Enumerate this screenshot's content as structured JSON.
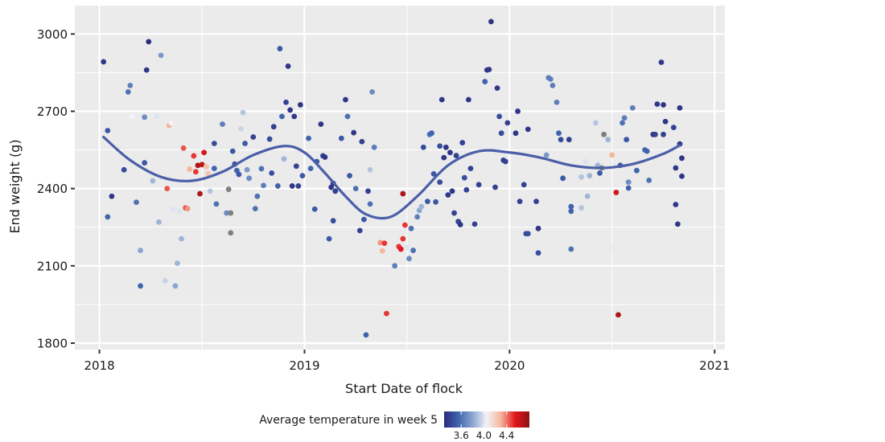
{
  "chart_data": {
    "type": "scatter",
    "title": "",
    "xlabel": "Start Date of flock",
    "ylabel": "End weight (g)",
    "xlim": [
      2017.88,
      2021.05
    ],
    "ylim": [
      1775,
      3110
    ],
    "x_ticks": [
      2018,
      2019,
      2020,
      2021
    ],
    "x_tick_labels": [
      "2018",
      "2019",
      "2020",
      "2021"
    ],
    "y_ticks": [
      1800,
      2100,
      2400,
      2700,
      3000
    ],
    "y_tick_labels": [
      "1800",
      "2100",
      "2400",
      "2700",
      "3000"
    ],
    "grid": true,
    "legend": {
      "title": "Average temperature in week 5",
      "placement": "bottom",
      "type": "colorbar",
      "range": [
        3.3,
        4.8
      ],
      "ticks": [
        3.6,
        4.0,
        4.4
      ],
      "tick_labels": [
        "3.6",
        "4.0",
        "4.4"
      ],
      "colors": [
        "#2c2a7e",
        "#3f64ad",
        "#8aa6cf",
        "#f2f2f7",
        "#f4b69b",
        "#e3161a",
        "#8c1416"
      ],
      "missing_color": "#7f7f7f"
    },
    "smooth_line": {
      "color": "#4a5fa8",
      "x": [
        2018.02,
        2018.15,
        2018.3,
        2018.45,
        2018.6,
        2018.75,
        2018.9,
        2019.0,
        2019.1,
        2019.2,
        2019.3,
        2019.42,
        2019.55,
        2019.7,
        2019.85,
        2020.0,
        2020.15,
        2020.3,
        2020.45,
        2020.6,
        2020.75,
        2020.83
      ],
      "y": [
        2600,
        2510,
        2445,
        2430,
        2465,
        2530,
        2565,
        2540,
        2460,
        2370,
        2300,
        2290,
        2370,
        2490,
        2545,
        2540,
        2520,
        2490,
        2480,
        2495,
        2535,
        2568
      ]
    },
    "points": [
      {
        "x": 2018.02,
        "y": 2892,
        "t": 3.35
      },
      {
        "x": 2018.04,
        "y": 2625,
        "t": 3.5
      },
      {
        "x": 2018.04,
        "y": 2290,
        "t": 3.55
      },
      {
        "x": 2018.06,
        "y": 2370,
        "t": 3.35
      },
      {
        "x": 2018.12,
        "y": 2473,
        "t": 3.45
      },
      {
        "x": 2018.14,
        "y": 2775,
        "t": 3.6
      },
      {
        "x": 2018.15,
        "y": 2800,
        "t": 3.65
      },
      {
        "x": 2018.16,
        "y": 2680,
        "t": 4.05
      },
      {
        "x": 2018.18,
        "y": 2347,
        "t": 3.6
      },
      {
        "x": 2018.2,
        "y": 2160,
        "t": 3.8
      },
      {
        "x": 2018.2,
        "y": 2022,
        "t": 3.55
      },
      {
        "x": 2018.22,
        "y": 2677,
        "t": 3.7
      },
      {
        "x": 2018.22,
        "y": 2500,
        "t": 3.5
      },
      {
        "x": 2018.23,
        "y": 2860,
        "t": 3.35
      },
      {
        "x": 2018.24,
        "y": 2970,
        "t": 3.3
      },
      {
        "x": 2018.26,
        "y": 2430,
        "t": 3.85
      },
      {
        "x": 2018.28,
        "y": 2680,
        "t": 4.0
      },
      {
        "x": 2018.29,
        "y": 2270,
        "t": 3.85
      },
      {
        "x": 2018.3,
        "y": 2917,
        "t": 3.75
      },
      {
        "x": 2018.32,
        "y": 2042,
        "t": 3.95
      },
      {
        "x": 2018.33,
        "y": 2400,
        "t": 4.45
      },
      {
        "x": 2018.34,
        "y": 2645,
        "t": 4.3
      },
      {
        "x": 2018.35,
        "y": 2655,
        "t": 4.05
      },
      {
        "x": 2018.36,
        "y": 2320,
        "t": 4.0
      },
      {
        "x": 2018.37,
        "y": 2022,
        "t": 3.8
      },
      {
        "x": 2018.38,
        "y": 2110,
        "t": 3.85
      },
      {
        "x": 2018.39,
        "y": 2310,
        "t": 4.0
      },
      {
        "x": 2018.4,
        "y": 2205,
        "t": 3.85
      },
      {
        "x": 2018.41,
        "y": 2557,
        "t": 4.45
      },
      {
        "x": 2018.42,
        "y": 2325,
        "t": 4.45
      },
      {
        "x": 2018.43,
        "y": 2322,
        "t": 4.35
      },
      {
        "x": 2018.44,
        "y": 2475,
        "t": 4.3
      },
      {
        "x": 2018.46,
        "y": 2527,
        "t": 4.5
      },
      {
        "x": 2018.47,
        "y": 2465,
        "t": 4.5
      },
      {
        "x": 2018.48,
        "y": 2490,
        "t": 4.7
      },
      {
        "x": 2018.49,
        "y": 2380,
        "t": 4.7
      },
      {
        "x": 2018.5,
        "y": 2493,
        "t": 4.65
      },
      {
        "x": 2018.51,
        "y": 2540,
        "t": 4.6
      },
      {
        "x": 2018.52,
        "y": 2485,
        "t": 4.25
      },
      {
        "x": 2018.53,
        "y": 2458,
        "t": 4.25
      },
      {
        "x": 2018.54,
        "y": 2390,
        "t": 3.9
      },
      {
        "x": 2018.56,
        "y": 2575,
        "t": 3.45
      },
      {
        "x": 2018.56,
        "y": 2478,
        "t": 3.55
      },
      {
        "x": 2018.57,
        "y": 2340,
        "t": 3.6
      },
      {
        "x": 2018.6,
        "y": 2650,
        "t": 3.65
      },
      {
        "x": 2018.62,
        "y": 2305,
        "t": 3.7
      },
      {
        "x": 2018.63,
        "y": 2397,
        "t": 3.3,
        "missing": true
      },
      {
        "x": 2018.64,
        "y": 2305,
        "t": 3.3,
        "missing": true
      },
      {
        "x": 2018.64,
        "y": 2228,
        "t": 3.3,
        "missing": true
      },
      {
        "x": 2018.65,
        "y": 2545,
        "t": 3.5
      },
      {
        "x": 2018.66,
        "y": 2495,
        "t": 3.45
      },
      {
        "x": 2018.67,
        "y": 2470,
        "t": 3.55
      },
      {
        "x": 2018.68,
        "y": 2455,
        "t": 3.5
      },
      {
        "x": 2018.69,
        "y": 2632,
        "t": 3.95
      },
      {
        "x": 2018.7,
        "y": 2695,
        "t": 3.9
      },
      {
        "x": 2018.71,
        "y": 2575,
        "t": 3.5
      },
      {
        "x": 2018.72,
        "y": 2473,
        "t": 3.75
      },
      {
        "x": 2018.73,
        "y": 2440,
        "t": 3.7
      },
      {
        "x": 2018.75,
        "y": 2600,
        "t": 3.4
      },
      {
        "x": 2018.76,
        "y": 2322,
        "t": 3.6
      },
      {
        "x": 2018.77,
        "y": 2370,
        "t": 3.6
      },
      {
        "x": 2018.79,
        "y": 2477,
        "t": 3.6
      },
      {
        "x": 2018.8,
        "y": 2412,
        "t": 3.65
      },
      {
        "x": 2018.83,
        "y": 2592,
        "t": 3.45
      },
      {
        "x": 2018.84,
        "y": 2460,
        "t": 3.45
      },
      {
        "x": 2018.85,
        "y": 2640,
        "t": 3.4
      },
      {
        "x": 2018.87,
        "y": 2410,
        "t": 3.55
      },
      {
        "x": 2018.88,
        "y": 2943,
        "t": 3.5
      },
      {
        "x": 2018.89,
        "y": 2680,
        "t": 3.55
      },
      {
        "x": 2018.9,
        "y": 2515,
        "t": 3.85
      },
      {
        "x": 2018.91,
        "y": 2735,
        "t": 3.4
      },
      {
        "x": 2018.92,
        "y": 2875,
        "t": 3.35
      },
      {
        "x": 2018.93,
        "y": 2705,
        "t": 3.35
      },
      {
        "x": 2018.94,
        "y": 2410,
        "t": 3.35
      },
      {
        "x": 2018.95,
        "y": 2680,
        "t": 3.35
      },
      {
        "x": 2018.96,
        "y": 2487,
        "t": 3.4
      },
      {
        "x": 2018.97,
        "y": 2410,
        "t": 3.4
      },
      {
        "x": 2018.98,
        "y": 2725,
        "t": 3.35
      },
      {
        "x": 2018.99,
        "y": 2450,
        "t": 3.5
      },
      {
        "x": 2019.02,
        "y": 2595,
        "t": 3.55
      },
      {
        "x": 2019.03,
        "y": 2478,
        "t": 3.55
      },
      {
        "x": 2019.05,
        "y": 2320,
        "t": 3.5
      },
      {
        "x": 2019.06,
        "y": 2505,
        "t": 3.5
      },
      {
        "x": 2019.08,
        "y": 2650,
        "t": 3.35
      },
      {
        "x": 2019.09,
        "y": 2527,
        "t": 3.4
      },
      {
        "x": 2019.1,
        "y": 2522,
        "t": 3.35
      },
      {
        "x": 2019.12,
        "y": 2205,
        "t": 3.5
      },
      {
        "x": 2019.13,
        "y": 2405,
        "t": 3.35
      },
      {
        "x": 2019.14,
        "y": 2420,
        "t": 3.35
      },
      {
        "x": 2019.14,
        "y": 2275,
        "t": 3.45
      },
      {
        "x": 2019.15,
        "y": 2390,
        "t": 3.4
      },
      {
        "x": 2019.18,
        "y": 2595,
        "t": 3.5
      },
      {
        "x": 2019.2,
        "y": 2745,
        "t": 3.35
      },
      {
        "x": 2019.21,
        "y": 2680,
        "t": 3.6
      },
      {
        "x": 2019.22,
        "y": 2450,
        "t": 3.5
      },
      {
        "x": 2019.24,
        "y": 2617,
        "t": 3.35
      },
      {
        "x": 2019.25,
        "y": 2400,
        "t": 3.6
      },
      {
        "x": 2019.27,
        "y": 2237,
        "t": 3.4
      },
      {
        "x": 2019.28,
        "y": 2582,
        "t": 3.4
      },
      {
        "x": 2019.29,
        "y": 2280,
        "t": 3.5
      },
      {
        "x": 2019.3,
        "y": 1832,
        "t": 3.55
      },
      {
        "x": 2019.31,
        "y": 2390,
        "t": 3.4
      },
      {
        "x": 2019.32,
        "y": 2340,
        "t": 3.6
      },
      {
        "x": 2019.32,
        "y": 2473,
        "t": 3.9
      },
      {
        "x": 2019.33,
        "y": 2775,
        "t": 3.7
      },
      {
        "x": 2019.34,
        "y": 2560,
        "t": 3.65
      },
      {
        "x": 2019.37,
        "y": 2190,
        "t": 4.35
      },
      {
        "x": 2019.38,
        "y": 2158,
        "t": 4.3
      },
      {
        "x": 2019.39,
        "y": 2188,
        "t": 4.5
      },
      {
        "x": 2019.4,
        "y": 1915,
        "t": 4.5
      },
      {
        "x": 2019.44,
        "y": 2100,
        "t": 3.65
      },
      {
        "x": 2019.46,
        "y": 2175,
        "t": 4.5
      },
      {
        "x": 2019.47,
        "y": 2165,
        "t": 4.55
      },
      {
        "x": 2019.48,
        "y": 2205,
        "t": 4.5
      },
      {
        "x": 2019.48,
        "y": 2380,
        "t": 4.7
      },
      {
        "x": 2019.49,
        "y": 2258,
        "t": 4.5
      },
      {
        "x": 2019.5,
        "y": 2172,
        "t": 4.0
      },
      {
        "x": 2019.51,
        "y": 2128,
        "t": 3.7
      },
      {
        "x": 2019.52,
        "y": 2245,
        "t": 3.6
      },
      {
        "x": 2019.53,
        "y": 2160,
        "t": 3.6
      },
      {
        "x": 2019.55,
        "y": 2290,
        "t": 3.65
      },
      {
        "x": 2019.56,
        "y": 2315,
        "t": 3.8
      },
      {
        "x": 2019.57,
        "y": 2330,
        "t": 3.85
      },
      {
        "x": 2019.58,
        "y": 2560,
        "t": 3.45
      },
      {
        "x": 2019.6,
        "y": 2350,
        "t": 3.5
      },
      {
        "x": 2019.61,
        "y": 2610,
        "t": 3.6
      },
      {
        "x": 2019.62,
        "y": 2615,
        "t": 3.55
      },
      {
        "x": 2019.63,
        "y": 2457,
        "t": 3.5
      },
      {
        "x": 2019.64,
        "y": 2348,
        "t": 3.5
      },
      {
        "x": 2019.66,
        "y": 2565,
        "t": 3.45
      },
      {
        "x": 2019.66,
        "y": 2425,
        "t": 3.45
      },
      {
        "x": 2019.67,
        "y": 2745,
        "t": 3.35
      },
      {
        "x": 2019.68,
        "y": 2520,
        "t": 3.35
      },
      {
        "x": 2019.69,
        "y": 2560,
        "t": 3.35
      },
      {
        "x": 2019.7,
        "y": 2375,
        "t": 3.35
      },
      {
        "x": 2019.71,
        "y": 2540,
        "t": 3.35
      },
      {
        "x": 2019.72,
        "y": 2390,
        "t": 3.35
      },
      {
        "x": 2019.73,
        "y": 2305,
        "t": 3.4
      },
      {
        "x": 2019.74,
        "y": 2528,
        "t": 3.4
      },
      {
        "x": 2019.75,
        "y": 2272,
        "t": 3.4
      },
      {
        "x": 2019.76,
        "y": 2260,
        "t": 3.35
      },
      {
        "x": 2019.77,
        "y": 2578,
        "t": 3.4
      },
      {
        "x": 2019.78,
        "y": 2442,
        "t": 3.45
      },
      {
        "x": 2019.79,
        "y": 2395,
        "t": 3.4
      },
      {
        "x": 2019.8,
        "y": 2745,
        "t": 3.35
      },
      {
        "x": 2019.81,
        "y": 2478,
        "t": 3.4
      },
      {
        "x": 2019.83,
        "y": 2262,
        "t": 3.4
      },
      {
        "x": 2019.85,
        "y": 2415,
        "t": 3.4
      },
      {
        "x": 2019.88,
        "y": 2815,
        "t": 3.55
      },
      {
        "x": 2019.89,
        "y": 2860,
        "t": 3.35
      },
      {
        "x": 2019.9,
        "y": 2862,
        "t": 3.35
      },
      {
        "x": 2019.91,
        "y": 3048,
        "t": 3.35
      },
      {
        "x": 2019.93,
        "y": 2405,
        "t": 3.4
      },
      {
        "x": 2019.94,
        "y": 2790,
        "t": 3.35
      },
      {
        "x": 2019.95,
        "y": 2680,
        "t": 3.45
      },
      {
        "x": 2019.96,
        "y": 2615,
        "t": 3.45
      },
      {
        "x": 2019.97,
        "y": 2510,
        "t": 3.4
      },
      {
        "x": 2019.98,
        "y": 2505,
        "t": 3.4
      },
      {
        "x": 2019.99,
        "y": 2655,
        "t": 3.4
      },
      {
        "x": 2020.03,
        "y": 2615,
        "t": 3.35
      },
      {
        "x": 2020.04,
        "y": 2700,
        "t": 3.35
      },
      {
        "x": 2020.05,
        "y": 2350,
        "t": 3.4
      },
      {
        "x": 2020.07,
        "y": 2415,
        "t": 3.4
      },
      {
        "x": 2020.08,
        "y": 2225,
        "t": 3.45
      },
      {
        "x": 2020.09,
        "y": 2225,
        "t": 3.45
      },
      {
        "x": 2020.09,
        "y": 2630,
        "t": 3.35
      },
      {
        "x": 2020.13,
        "y": 2350,
        "t": 3.4
      },
      {
        "x": 2020.14,
        "y": 2245,
        "t": 3.35
      },
      {
        "x": 2020.14,
        "y": 2150,
        "t": 3.45
      },
      {
        "x": 2020.18,
        "y": 2530,
        "t": 3.75
      },
      {
        "x": 2020.19,
        "y": 2830,
        "t": 3.65
      },
      {
        "x": 2020.2,
        "y": 2825,
        "t": 3.65
      },
      {
        "x": 2020.21,
        "y": 2800,
        "t": 3.65
      },
      {
        "x": 2020.23,
        "y": 2735,
        "t": 3.65
      },
      {
        "x": 2020.24,
        "y": 2615,
        "t": 3.55
      },
      {
        "x": 2020.25,
        "y": 2590,
        "t": 3.45
      },
      {
        "x": 2020.26,
        "y": 2440,
        "t": 3.5
      },
      {
        "x": 2020.29,
        "y": 2590,
        "t": 3.4
      },
      {
        "x": 2020.3,
        "y": 2330,
        "t": 3.55
      },
      {
        "x": 2020.3,
        "y": 2312,
        "t": 3.55
      },
      {
        "x": 2020.3,
        "y": 2165,
        "t": 3.6
      },
      {
        "x": 2020.35,
        "y": 2325,
        "t": 3.9
      },
      {
        "x": 2020.35,
        "y": 2445,
        "t": 3.9
      },
      {
        "x": 2020.37,
        "y": 2505,
        "t": 4.0
      },
      {
        "x": 2020.38,
        "y": 2370,
        "t": 3.85
      },
      {
        "x": 2020.39,
        "y": 2450,
        "t": 3.85
      },
      {
        "x": 2020.42,
        "y": 2655,
        "t": 3.9
      },
      {
        "x": 2020.43,
        "y": 2490,
        "t": 3.85
      },
      {
        "x": 2020.44,
        "y": 2460,
        "t": 3.5
      },
      {
        "x": 2020.45,
        "y": 2480,
        "t": 3.3,
        "missing": true
      },
      {
        "x": 2020.46,
        "y": 2610,
        "t": 3.3,
        "missing": true
      },
      {
        "x": 2020.48,
        "y": 2590,
        "t": 3.85
      },
      {
        "x": 2020.5,
        "y": 2530,
        "t": 4.3
      },
      {
        "x": 2020.51,
        "y": 2170,
        "t": 4.1
      },
      {
        "x": 2020.52,
        "y": 2385,
        "t": 4.6
      },
      {
        "x": 2020.53,
        "y": 1910,
        "t": 4.7
      },
      {
        "x": 2020.54,
        "y": 2490,
        "t": 3.5
      },
      {
        "x": 2020.55,
        "y": 2655,
        "t": 3.6
      },
      {
        "x": 2020.56,
        "y": 2674,
        "t": 3.65
      },
      {
        "x": 2020.57,
        "y": 2590,
        "t": 3.5
      },
      {
        "x": 2020.58,
        "y": 2402,
        "t": 3.55
      },
      {
        "x": 2020.58,
        "y": 2425,
        "t": 3.7
      },
      {
        "x": 2020.6,
        "y": 2713,
        "t": 3.65
      },
      {
        "x": 2020.62,
        "y": 2470,
        "t": 3.55
      },
      {
        "x": 2020.66,
        "y": 2550,
        "t": 3.55
      },
      {
        "x": 2020.67,
        "y": 2545,
        "t": 3.55
      },
      {
        "x": 2020.68,
        "y": 2432,
        "t": 3.6
      },
      {
        "x": 2020.7,
        "y": 2610,
        "t": 3.35
      },
      {
        "x": 2020.71,
        "y": 2610,
        "t": 3.4
      },
      {
        "x": 2020.72,
        "y": 2728,
        "t": 3.35
      },
      {
        "x": 2020.74,
        "y": 2890,
        "t": 3.35
      },
      {
        "x": 2020.75,
        "y": 2725,
        "t": 3.35
      },
      {
        "x": 2020.75,
        "y": 2610,
        "t": 3.4
      },
      {
        "x": 2020.76,
        "y": 2660,
        "t": 3.35
      },
      {
        "x": 2020.8,
        "y": 2637,
        "t": 3.4
      },
      {
        "x": 2020.81,
        "y": 2480,
        "t": 3.35
      },
      {
        "x": 2020.81,
        "y": 2338,
        "t": 3.35
      },
      {
        "x": 2020.82,
        "y": 2262,
        "t": 3.35
      },
      {
        "x": 2020.83,
        "y": 2713,
        "t": 3.35
      },
      {
        "x": 2020.83,
        "y": 2573,
        "t": 3.35
      },
      {
        "x": 2020.84,
        "y": 2518,
        "t": 3.35
      },
      {
        "x": 2020.84,
        "y": 2448,
        "t": 3.35
      }
    ]
  }
}
